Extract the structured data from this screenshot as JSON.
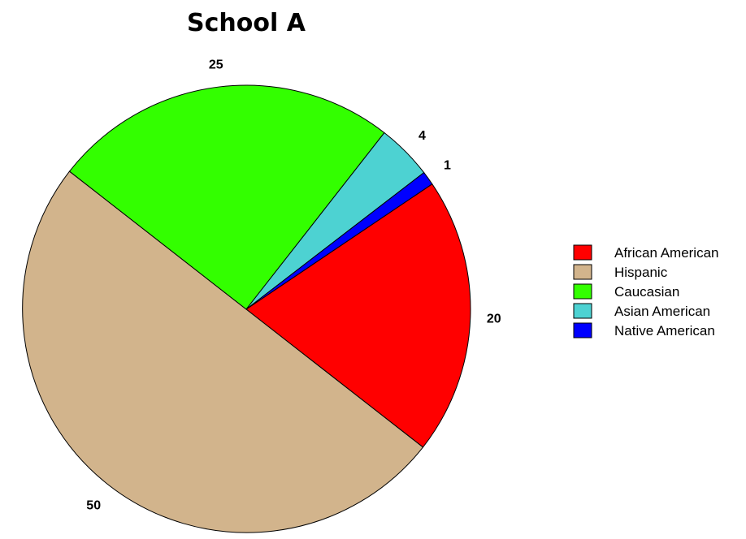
{
  "chart_data": {
    "type": "pie",
    "title": "School A",
    "categories": [
      "African American",
      "Hispanic",
      "Caucasian",
      "Asian American",
      "Native American"
    ],
    "values": [
      20,
      50,
      25,
      4,
      1
    ],
    "value_labels": [
      "20",
      "50",
      "25",
      "4",
      "1"
    ],
    "colors": [
      "#ff0000",
      "#d2b48c",
      "#33ff00",
      "#4dd2d2",
      "#0000ff"
    ],
    "start_angle_deg": 56,
    "direction": "clockwise",
    "legend_position": "right",
    "grid": false
  }
}
